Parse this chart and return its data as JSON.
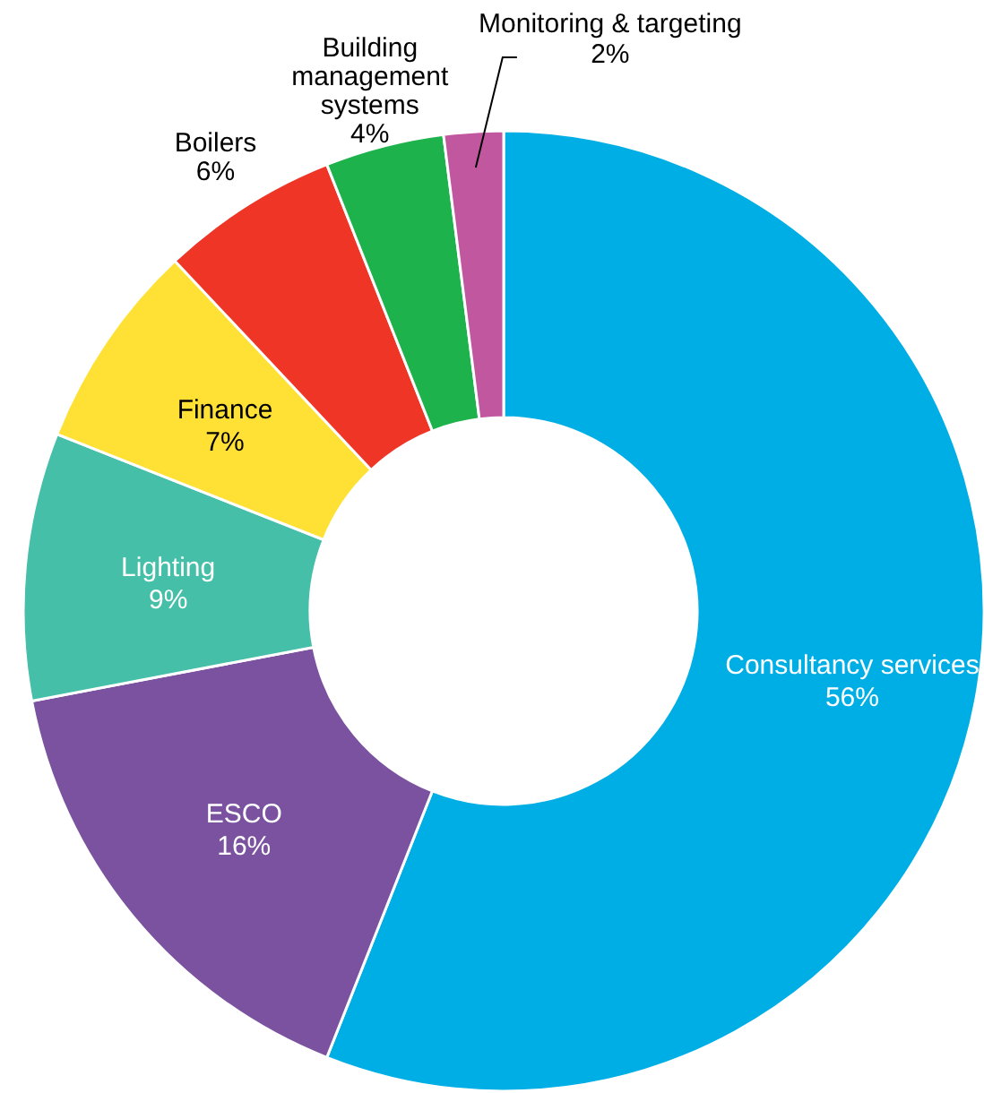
{
  "chart_data": {
    "type": "donut",
    "categories": [
      "Consultancy services",
      "ESCO",
      "Lighting",
      "Finance",
      "Boilers",
      "Building management systems",
      "Monitoring & targeting"
    ],
    "values": [
      56,
      16,
      9,
      7,
      6,
      4,
      2
    ],
    "colors": [
      "#00aee6",
      "#7b52a0",
      "#45bfa8",
      "#ffe135",
      "#ee3526",
      "#1db24b",
      "#c0579f"
    ],
    "value_labels": [
      "56%",
      "16%",
      "9%",
      "7%",
      "6%",
      "4%",
      "2%"
    ],
    "legend": false
  }
}
